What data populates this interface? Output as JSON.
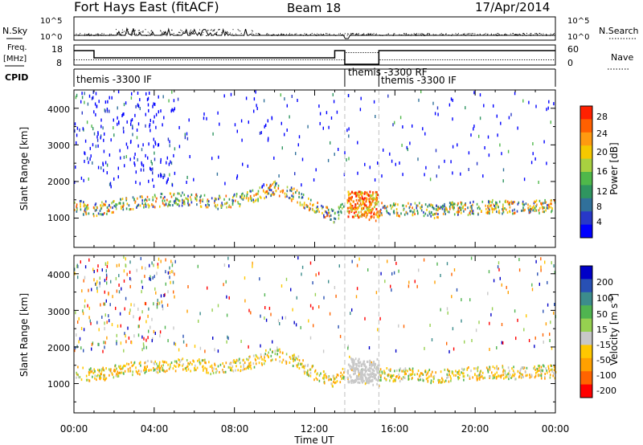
{
  "header": {
    "title": "Fort Hays East (fitACF)",
    "beam": "Beam 18",
    "date": "17/Apr/2014"
  },
  "params": {
    "nsky_label": "N.Sky",
    "nsearch_label": "N.Search",
    "freq_label_1": "Freq.",
    "freq_label_2": "[MHz]",
    "nave_label": "Nave",
    "cpid_label": "CPID",
    "left_ticks_top": [
      "10^5",
      "10^0"
    ],
    "right_ticks_top": [
      "10^5",
      "10^0"
    ],
    "freq_ticks": [
      "18",
      "8"
    ],
    "nave_ticks": [
      "60",
      "0"
    ],
    "cpid_segments": [
      {
        "label": "themis -3300 IF",
        "start_hour": 0,
        "end_hour": 13.5
      },
      {
        "label": "themis -3300 RF",
        "start_hour": 13.5,
        "end_hour": 15.2
      },
      {
        "label": "themis -3300 IF",
        "start_hour": 15.2,
        "end_hour": 24
      }
    ]
  },
  "chart_data": [
    {
      "type": "heatmap",
      "name": "power",
      "ylabel": "Slant Range [km]",
      "yticks": [
        1000,
        2000,
        3000,
        4000
      ],
      "ylim": [
        200,
        4500
      ],
      "xticks_hours": [
        0,
        4,
        8,
        12,
        16,
        20,
        24
      ],
      "colorbar_label": "Power [dB]",
      "colorbar_ticks": [
        "4",
        "8",
        "12",
        "16",
        "20",
        "24",
        "28"
      ],
      "colorbar_colors": [
        "#0000ff",
        "#2838c8",
        "#30709a",
        "#2f9560",
        "#4fb84a",
        "#a8d040",
        "#f5c800",
        "#ff9a10",
        "#ff6000",
        "#ff2000"
      ],
      "series": [
        {
          "band": "main echo",
          "x_hours": [
            0,
            1,
            2,
            3,
            4,
            5,
            6,
            7,
            8,
            9,
            10,
            11,
            12,
            13,
            13.6,
            14,
            15,
            16,
            17,
            18,
            19,
            20,
            21,
            22,
            23,
            24
          ],
          "range_km": [
            1350,
            1250,
            1350,
            1450,
            1500,
            1550,
            1550,
            1450,
            1500,
            1650,
            1850,
            1650,
            1300,
            1050,
            1450,
            1400,
            1300,
            1250,
            1300,
            1200,
            1300,
            1300,
            1350,
            1300,
            1350,
            1350
          ]
        }
      ]
    },
    {
      "type": "heatmap",
      "name": "velocity",
      "ylabel": "Slant Range [km]",
      "yticks": [
        1000,
        2000,
        3000,
        4000
      ],
      "ylim": [
        200,
        4500
      ],
      "xticks_hours": [
        0,
        4,
        8,
        12,
        16,
        20,
        24
      ],
      "xtick_labels": [
        "00:00",
        "04:00",
        "08:00",
        "12:00",
        "16:00",
        "20:00",
        "00:00"
      ],
      "xlabel": "Time UT",
      "colorbar_label": "Velocity [m s",
      "colorbar_label_sup": "-1",
      "colorbar_label_end": "]",
      "colorbar_ticks": [
        "200",
        "100",
        "50",
        "15",
        "-15",
        "-50",
        "-100",
        "-200"
      ],
      "colorbar_colors": [
        "#0000c8",
        "#2850b4",
        "#3c8c8c",
        "#50b450",
        "#96d050",
        "#c8c8c8",
        "#ffc800",
        "#ffa000",
        "#ff6400",
        "#ff0000"
      ]
    }
  ],
  "colors": {
    "axis": "#000000",
    "dashed_divider": "#c0c0c0",
    "ground_scatter": "#c0c0c0"
  }
}
